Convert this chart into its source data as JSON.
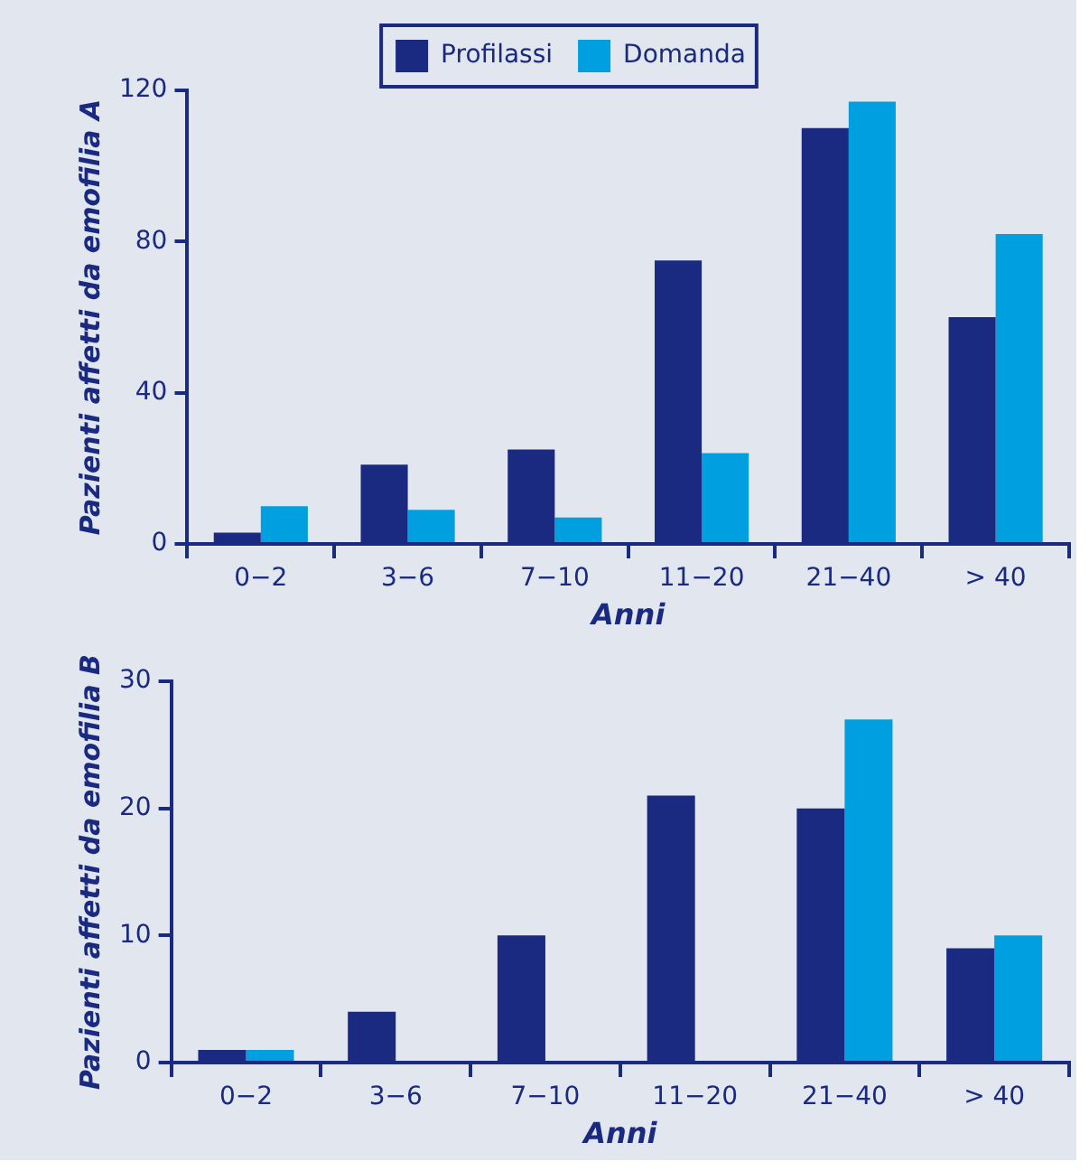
{
  "chart_data": [
    {
      "type": "bar",
      "xlabel": "Anni",
      "ylabel": "Pazienti affetti da emofilia A",
      "categories": [
        "0−2",
        "3−6",
        "7−10",
        "11−20",
        "21−40",
        "> 40"
      ],
      "series": [
        {
          "name": "Profilassi",
          "color": "#1a2a80",
          "values": [
            3,
            21,
            25,
            75,
            110,
            60
          ]
        },
        {
          "name": "Domanda",
          "color": "#009fdf",
          "values": [
            10,
            9,
            7,
            24,
            117,
            82
          ]
        }
      ],
      "ylim": [
        0,
        120
      ],
      "yticks": [
        0,
        40,
        80,
        120
      ],
      "grid": false,
      "legend": "top"
    },
    {
      "type": "bar",
      "xlabel": "Anni",
      "ylabel": "Pazienti affetti da emofilia B",
      "categories": [
        "0−2",
        "3−6",
        "7−10",
        "11−20",
        "21−40",
        "> 40"
      ],
      "series": [
        {
          "color": "#1a2a80",
          "values": [
            1,
            4,
            10,
            21,
            20,
            9
          ]
        },
        {
          "color": "#009fdf",
          "values": [
            1,
            0,
            0,
            0,
            27,
            10
          ]
        }
      ],
      "ylim": [
        0,
        30
      ],
      "yticks": [
        0,
        10,
        20,
        30
      ],
      "grid": false,
      "legend": false
    }
  ]
}
